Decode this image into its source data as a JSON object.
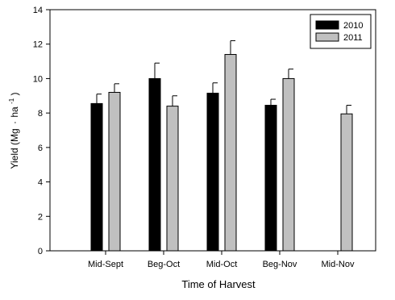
{
  "chart_data": {
    "type": "bar",
    "xlabel": "Time of Harvest",
    "ylabel_main": "Yield (Mg",
    "ylabel_unit_exp": "-1",
    "ylabel_close": ")",
    "ylabel_ha": "ha",
    "ylabel_dot": "·",
    "ylim": [
      0,
      14
    ],
    "yticks": [
      0,
      2,
      4,
      6,
      8,
      10,
      12,
      14
    ],
    "grid": false,
    "legend_position": "top-right",
    "categories": [
      "Mid-Sept",
      "Beg-Oct",
      "Mid-Oct",
      "Beg-Nov",
      "Mid-Nov"
    ],
    "series": [
      {
        "name": "2010",
        "color": "#000000",
        "values": [
          8.55,
          10.0,
          9.15,
          8.45,
          null
        ],
        "errors": [
          0.55,
          0.9,
          0.6,
          0.35,
          null
        ]
      },
      {
        "name": "2011",
        "color": "#c0c0c0",
        "values": [
          9.2,
          8.4,
          11.4,
          10.0,
          7.95
        ],
        "errors": [
          0.5,
          0.6,
          0.8,
          0.55,
          0.5
        ]
      }
    ]
  }
}
